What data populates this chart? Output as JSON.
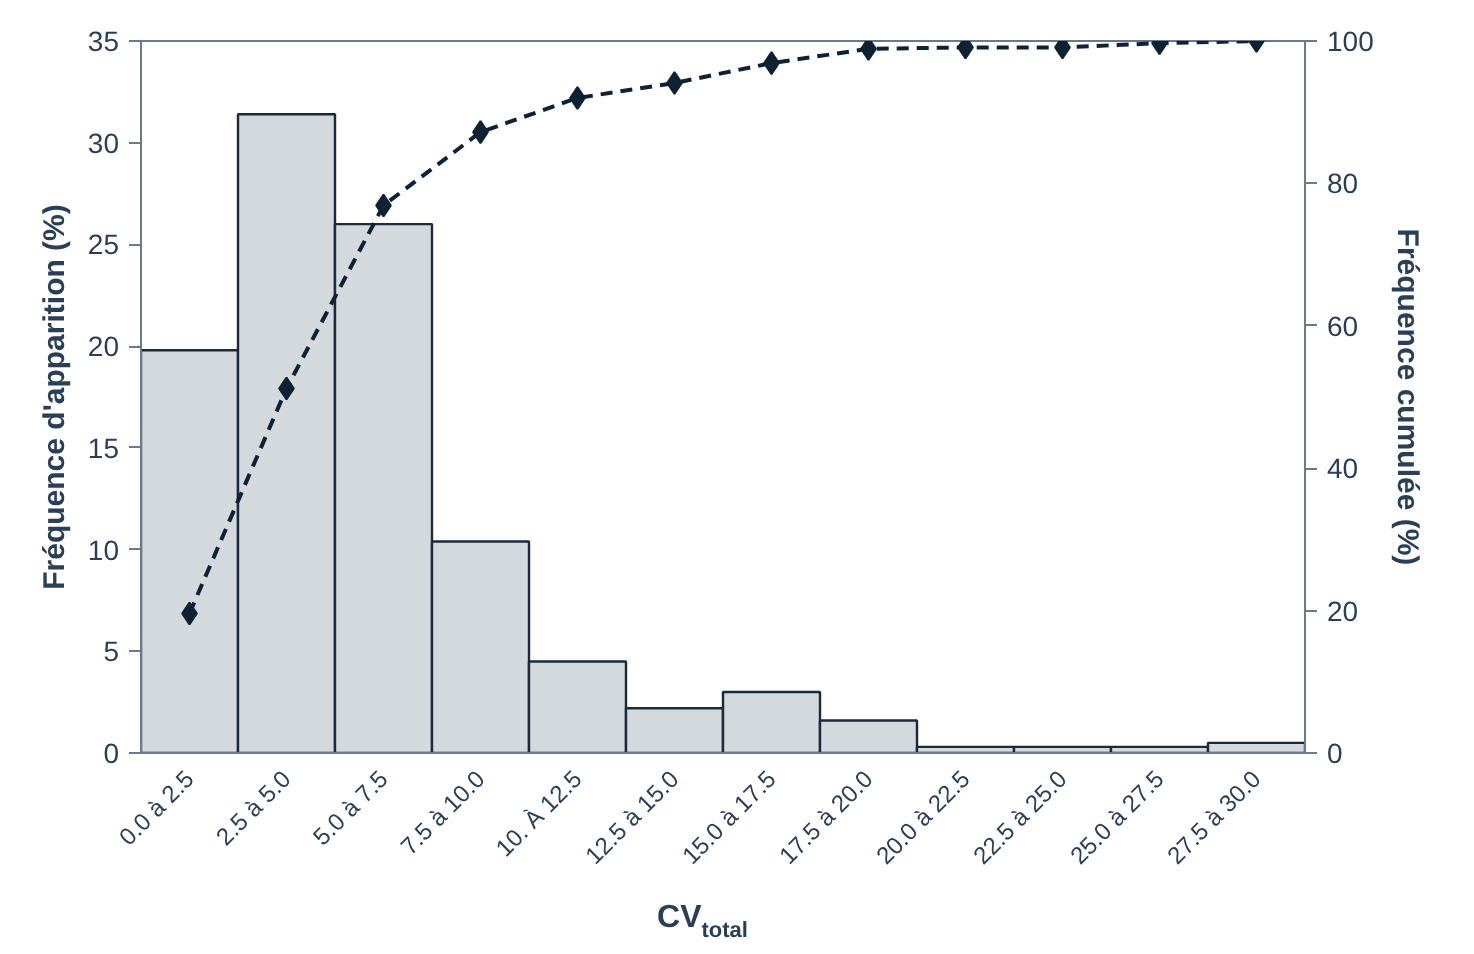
{
  "chart_data": {
    "type": "bar",
    "xlabel": "CV$_{total}$",
    "ylabel": "Fréquence d'apparition (%)",
    "y2label": "Fréquence cumulée (%)",
    "categories": [
      "0.0 à 2.5",
      "2.5 à 5.0",
      "5.0 à 7.5",
      "7.5 à 10.0",
      "10. À 12.5",
      "12.5 à 15.0",
      "15.0 à 17.5",
      "17.5 à 20.0",
      "20.0 à 22.5",
      "22.5 à 25.0",
      "25.0 à 27.5",
      "27.5 à 30.0"
    ],
    "series": [
      {
        "color": "#d4d9de",
        "values": [
          19.8,
          31.4,
          26.0,
          10.4,
          4.5,
          2.2,
          3.0,
          1.6,
          0.3,
          0.3,
          0.3,
          0.5
        ]
      },
      {
        "type": "line",
        "axis": "y2",
        "color": "#0f2233",
        "marker": "diamond",
        "line_style": "dashed",
        "values": [
          19.6,
          51.2,
          76.9,
          87.2,
          92.0,
          94.1,
          96.9,
          98.9,
          99.1,
          99.1,
          99.7,
          100
        ]
      }
    ],
    "ylim": [
      0,
      35
    ],
    "yticks": [
      0,
      5,
      10,
      15,
      20,
      25,
      30,
      35
    ],
    "y2lim": [
      0,
      100
    ],
    "y2ticks": [
      0,
      20,
      40,
      60,
      80,
      100
    ],
    "grid": false
  }
}
